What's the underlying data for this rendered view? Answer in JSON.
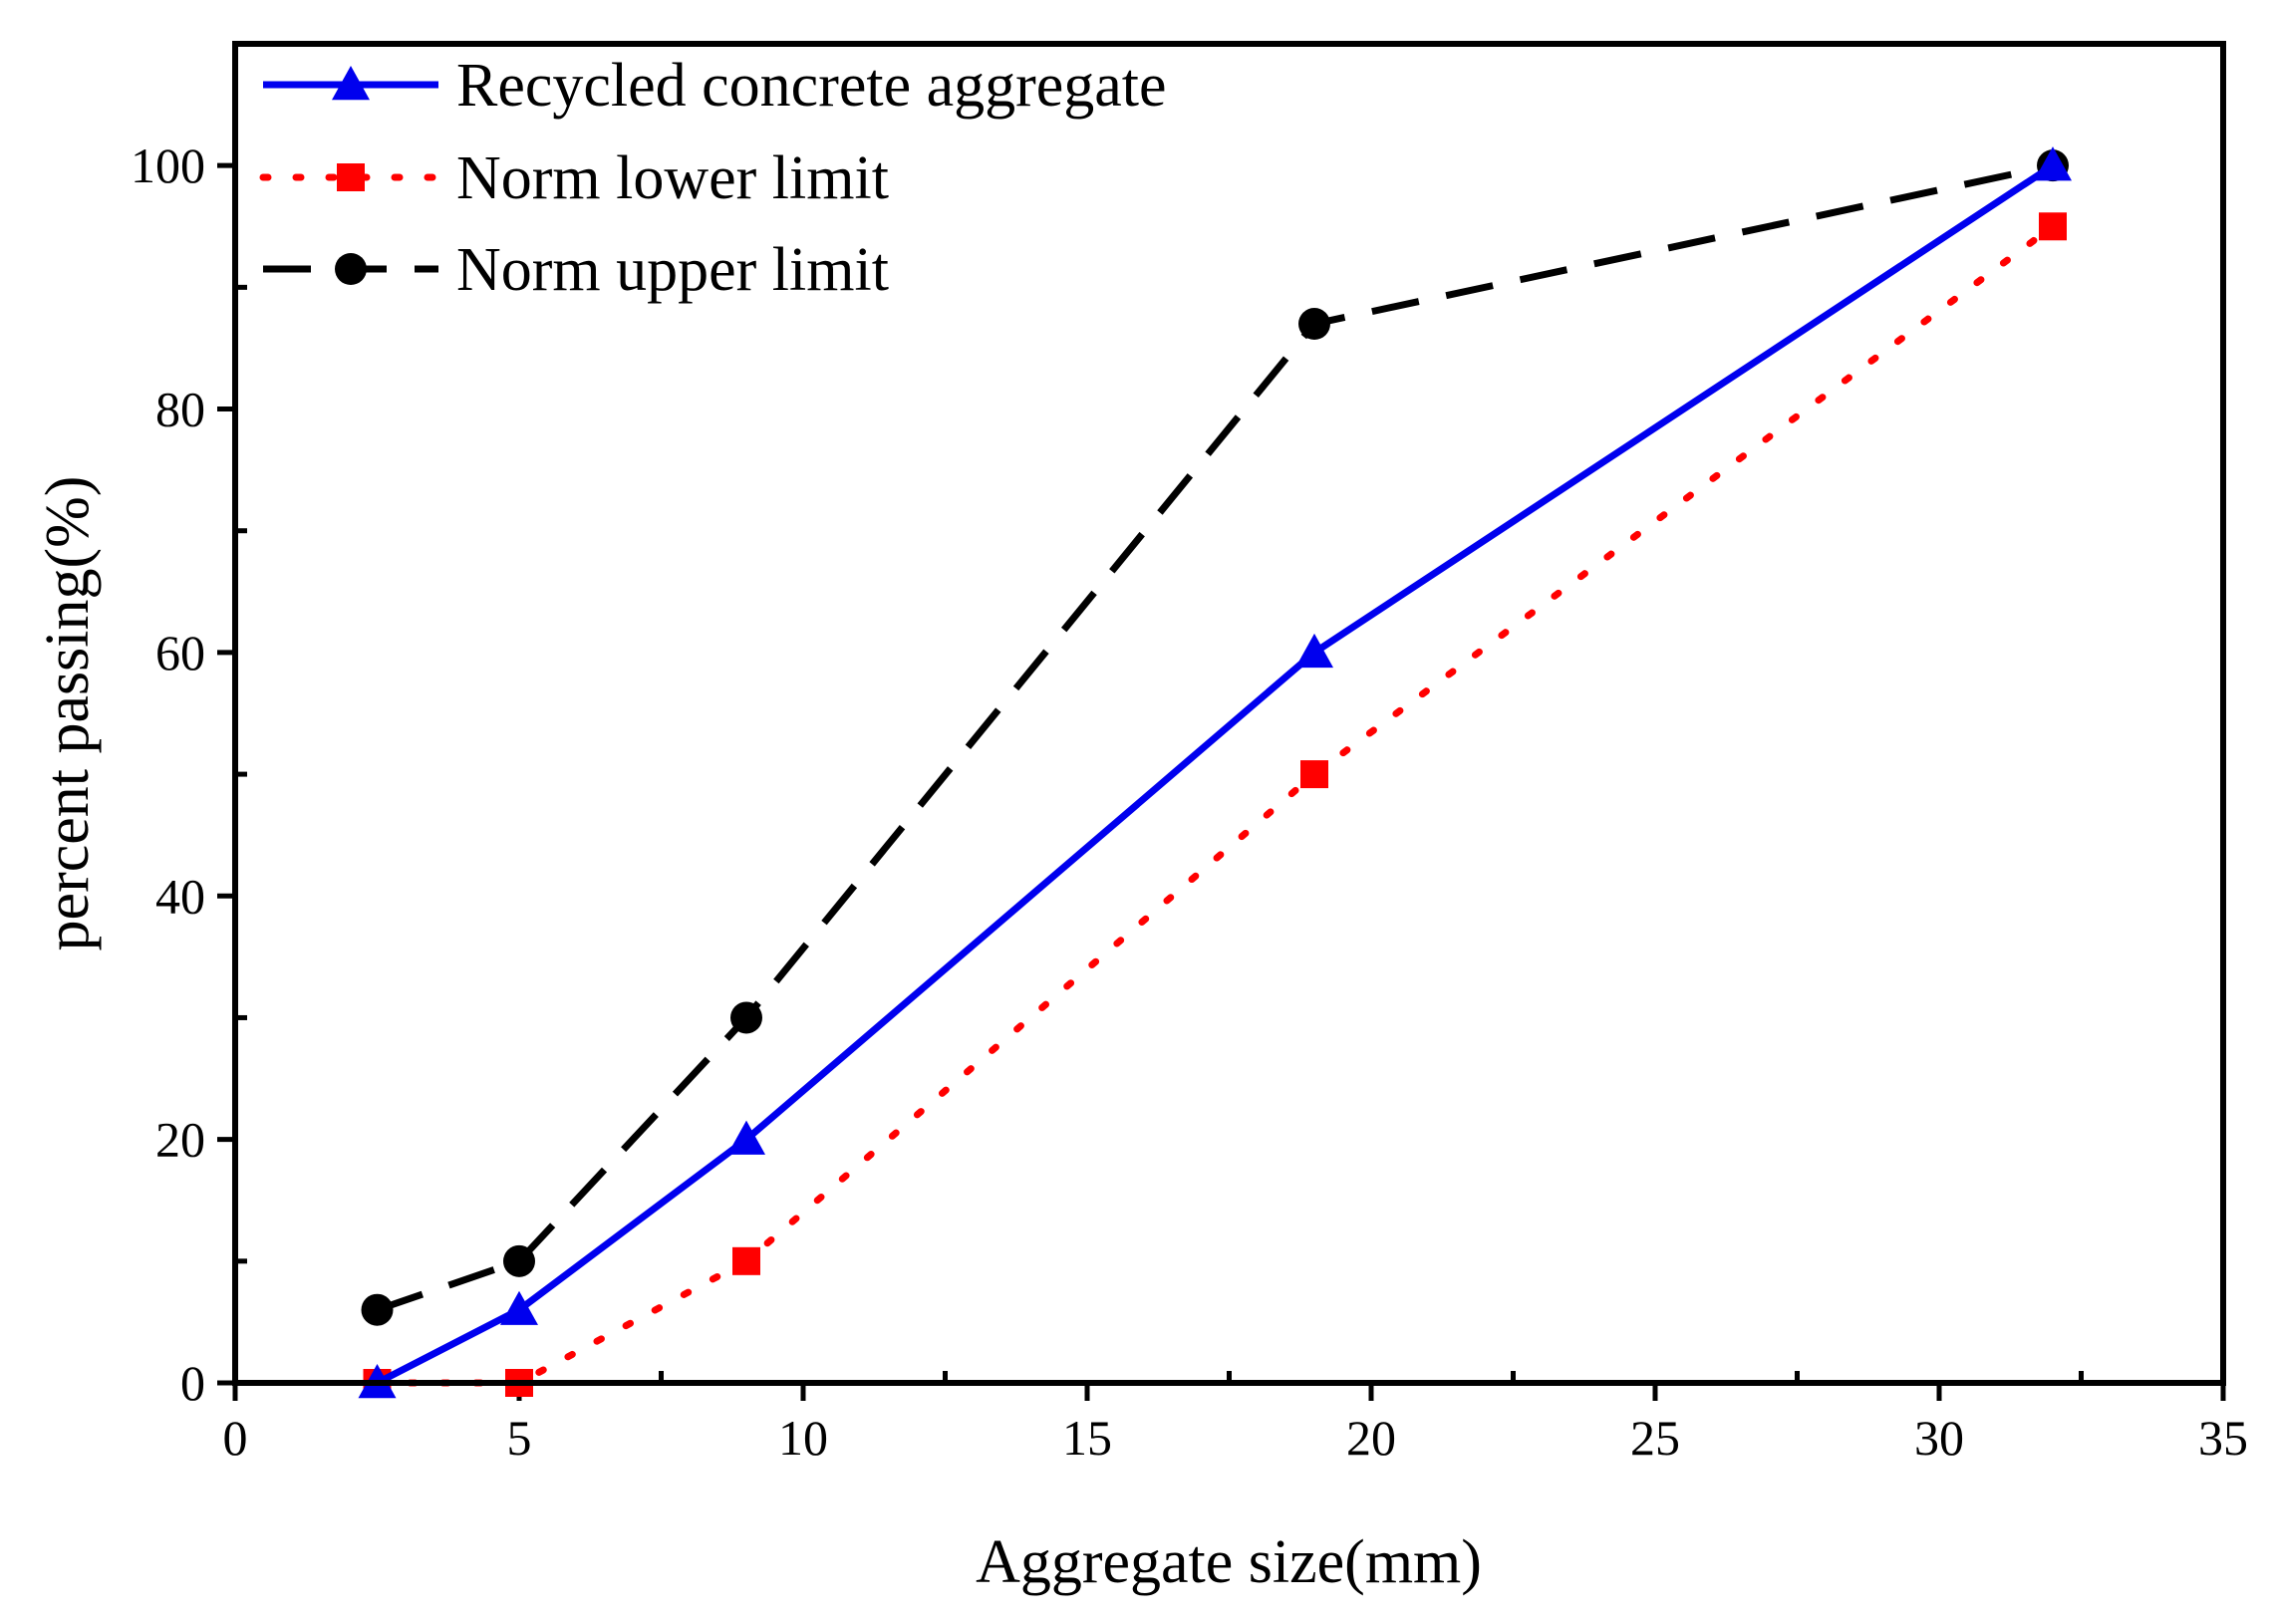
{
  "chart_data": {
    "type": "line",
    "title": "",
    "xlabel": "Aggregate size(mm)",
    "ylabel": "percent passing(%)",
    "xlim": [
      0,
      35
    ],
    "ylim": [
      0,
      110
    ],
    "xticks": [
      0,
      5,
      10,
      15,
      20,
      25,
      30,
      35
    ],
    "yticks": [
      0,
      20,
      40,
      60,
      80,
      100
    ],
    "xtick_labels": [
      "0",
      "5",
      "10",
      "15",
      "20",
      "25",
      "30",
      "35"
    ],
    "ytick_labels": [
      "0",
      "20",
      "40",
      "60",
      "80",
      "100"
    ],
    "grid": false,
    "legend_position": "top-left",
    "series": [
      {
        "name": "Recycled concrete aggregate",
        "color": "#0000ee",
        "line_style": "solid",
        "marker": "triangle",
        "x": [
          2.5,
          5,
          9,
          19,
          32
        ],
        "y": [
          0,
          6,
          20,
          60,
          100
        ]
      },
      {
        "name": "Norm lower limit",
        "color": "#ff0000",
        "line_style": "dotted",
        "marker": "square",
        "x": [
          2.5,
          5,
          9,
          19,
          32
        ],
        "y": [
          0,
          0,
          10,
          50,
          95
        ]
      },
      {
        "name": "Norm upper limit",
        "color": "#000000",
        "line_style": "dashed",
        "marker": "circle",
        "x": [
          2.5,
          5,
          9,
          19,
          32
        ],
        "y": [
          6,
          10,
          30,
          87,
          100
        ]
      }
    ]
  }
}
